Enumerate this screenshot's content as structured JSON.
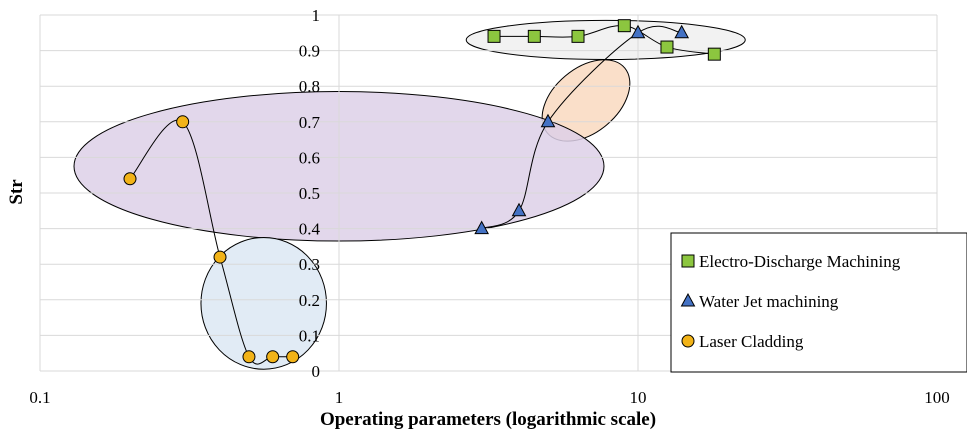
{
  "chart_data": {
    "type": "scatter",
    "title": "",
    "xlabel": "Operating parameters (logarithmic scale)",
    "ylabel": "Str",
    "xscale": "log",
    "xlim": [
      0.1,
      100
    ],
    "ylim": [
      0,
      1
    ],
    "x_ticks": [
      "0.1",
      "1",
      "10",
      "100"
    ],
    "y_ticks": [
      "0",
      "0.1",
      "0.2",
      "0.3",
      "0.4",
      "0.5",
      "0.6",
      "0.7",
      "0.8",
      "0.9",
      "1"
    ],
    "grid": true,
    "legend_position": "bottom-right",
    "series": [
      {
        "name": "Electro-Discharge Machining",
        "marker": "square",
        "color": "#8cc63f",
        "points": [
          [
            3.3,
            0.94
          ],
          [
            4.5,
            0.94
          ],
          [
            6.3,
            0.94
          ],
          [
            9,
            0.97
          ],
          [
            12.5,
            0.91
          ],
          [
            18,
            0.89
          ]
        ]
      },
      {
        "name": "Water Jet machining",
        "marker": "triangle",
        "color": "#4472c4",
        "points": [
          [
            3,
            0.4
          ],
          [
            4,
            0.45
          ],
          [
            5,
            0.7
          ],
          [
            10,
            0.95
          ],
          [
            14,
            0.95
          ]
        ]
      },
      {
        "name": "Laser Cladding",
        "marker": "circle",
        "color": "#f2b318",
        "points": [
          [
            0.2,
            0.54
          ],
          [
            0.3,
            0.7
          ],
          [
            0.4,
            0.32
          ],
          [
            0.5,
            0.04
          ],
          [
            0.6,
            0.04
          ],
          [
            0.7,
            0.04
          ]
        ]
      }
    ],
    "regions": [
      {
        "fill": "#f0f0f0",
        "shape": "ellipse",
        "center": [
          7.8,
          0.93
        ],
        "xspan": [
          2.8,
          24
        ],
        "yspan": [
          0.88,
          0.99
        ],
        "rotation": 0
      },
      {
        "fill": "#f9d9bf",
        "shape": "ellipse",
        "center": [
          6.7,
          0.76
        ],
        "xspan": [
          4.5,
          9.8
        ],
        "yspan": [
          0.68,
          0.86
        ],
        "rotation": -40
      },
      {
        "fill": "#ddd0e8",
        "shape": "ellipse",
        "center": [
          1.0,
          0.575
        ],
        "xspan": [
          0.13,
          7.7
        ],
        "yspan": [
          0.37,
          0.79
        ],
        "rotation": 0
      },
      {
        "fill": "#dce8f3",
        "shape": "ellipse",
        "center": [
          0.56,
          0.19
        ],
        "xspan": [
          0.35,
          0.92
        ],
        "yspan": [
          0.0,
          0.37
        ],
        "rotation": 0
      }
    ]
  }
}
